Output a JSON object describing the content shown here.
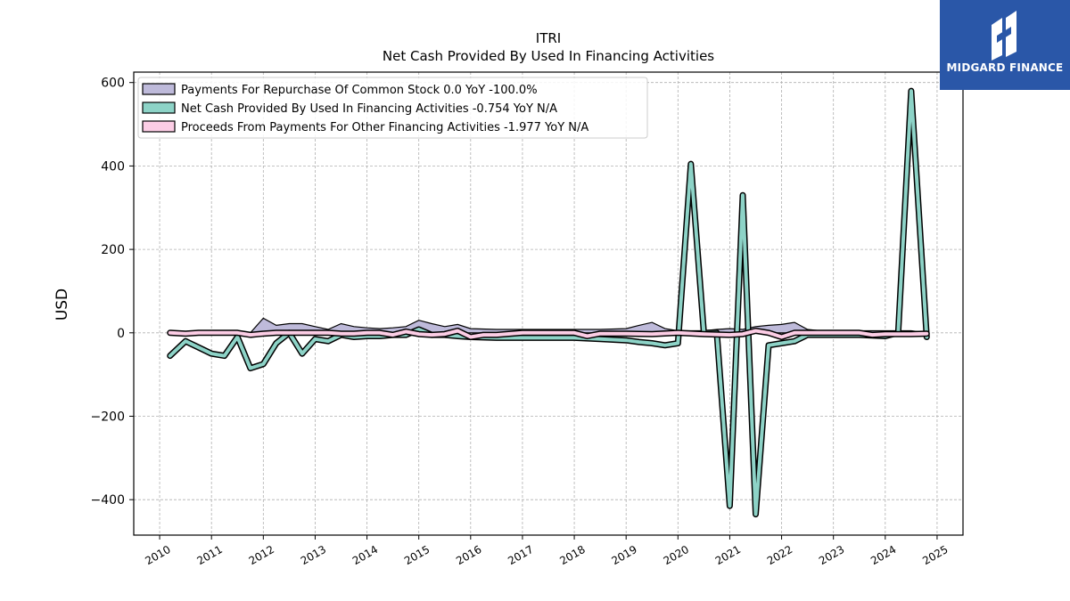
{
  "colors": {
    "repurchase": "#bebada",
    "net_cash": "#8dd3c7",
    "other_financing": "#fccde5",
    "outline": "#000000",
    "grid": "#b0b0b0",
    "logo_bg": "#2a57a8"
  },
  "logo": {
    "text": "MIDGARD FINANCE",
    "icon": "midgard-logo-icon"
  },
  "chart_data": {
    "type": "line",
    "title": "ITRI",
    "subtitle": "Net Cash Provided By Used In Financing Activities",
    "ylabel": "USD",
    "xlabel": "",
    "xlim": [
      2009.5,
      2025.5
    ],
    "ylim": [
      -485,
      625
    ],
    "x_ticks": [
      2010,
      2011,
      2012,
      2013,
      2014,
      2015,
      2016,
      2017,
      2018,
      2019,
      2020,
      2021,
      2022,
      2023,
      2024,
      2025
    ],
    "y_ticks": [
      600,
      400,
      200,
      0,
      -200,
      -400
    ],
    "grid": true,
    "legend_position": "top-left",
    "series": [
      {
        "name": "Payments For Repurchase Of Common Stock  0.0 YoY -100.0%",
        "x": [
          2010.2,
          2010.5,
          2010.75,
          2011.0,
          2011.25,
          2011.5,
          2011.75,
          2012.0,
          2012.25,
          2012.5,
          2012.75,
          2013.0,
          2013.25,
          2013.5,
          2013.75,
          2014.0,
          2014.25,
          2014.5,
          2014.75,
          2015.0,
          2015.25,
          2015.5,
          2015.75,
          2016.0,
          2016.5,
          2017.0,
          2017.5,
          2018.0,
          2018.5,
          2019.0,
          2019.25,
          2019.5,
          2019.75,
          2020.0,
          2020.25,
          2020.5,
          2020.75,
          2021.0,
          2021.25,
          2021.5,
          2021.75,
          2022.0,
          2022.25,
          2022.5,
          2022.75,
          2023.0,
          2023.5,
          2024.0,
          2024.5,
          2024.8
        ],
        "values": [
          0,
          0,
          0,
          0,
          0,
          0,
          0,
          35,
          18,
          22,
          22,
          15,
          8,
          22,
          15,
          12,
          10,
          12,
          15,
          30,
          22,
          15,
          20,
          10,
          8,
          8,
          8,
          8,
          8,
          10,
          18,
          25,
          10,
          5,
          5,
          5,
          8,
          10,
          8,
          15,
          18,
          20,
          25,
          8,
          5,
          5,
          5,
          5,
          5,
          0
        ]
      },
      {
        "name": "Net Cash Provided By Used In Financing Activities  -0.754 YoY N/A",
        "x": [
          2010.2,
          2010.5,
          2010.75,
          2011.0,
          2011.25,
          2011.5,
          2011.75,
          2012.0,
          2012.25,
          2012.5,
          2012.75,
          2013.0,
          2013.25,
          2013.5,
          2013.75,
          2014.0,
          2014.25,
          2014.5,
          2014.75,
          2015.0,
          2015.25,
          2015.5,
          2015.75,
          2016.0,
          2016.5,
          2017.0,
          2017.5,
          2018.0,
          2018.5,
          2019.0,
          2019.25,
          2019.5,
          2019.75,
          2020.0,
          2020.25,
          2020.5,
          2020.75,
          2021.0,
          2021.25,
          2021.5,
          2021.75,
          2022.0,
          2022.25,
          2022.5,
          2022.75,
          2023.0,
          2023.5,
          2024.0,
          2024.25,
          2024.5,
          2024.8
        ],
        "values": [
          -55,
          -20,
          -35,
          -50,
          -55,
          -10,
          -85,
          -75,
          -25,
          0,
          -50,
          -15,
          -20,
          -5,
          -10,
          -8,
          -8,
          -5,
          -5,
          8,
          -5,
          -5,
          -8,
          -10,
          -12,
          -12,
          -12,
          -12,
          -15,
          -18,
          -22,
          -25,
          -30,
          -25,
          405,
          0,
          0,
          -415,
          330,
          -435,
          -30,
          -25,
          -20,
          -5,
          -5,
          -5,
          -5,
          -8,
          0,
          580,
          -10
        ]
      },
      {
        "name": "Proceeds From Payments For Other Financing Activities  -1.977 YoY N/A",
        "x": [
          2010.2,
          2010.5,
          2010.75,
          2011.0,
          2011.25,
          2011.5,
          2011.75,
          2012.0,
          2012.25,
          2012.5,
          2012.75,
          2013.0,
          2013.25,
          2013.5,
          2013.75,
          2014.0,
          2014.25,
          2014.5,
          2014.75,
          2015.0,
          2015.25,
          2015.5,
          2015.75,
          2016.0,
          2016.25,
          2016.5,
          2017.0,
          2017.5,
          2018.0,
          2018.25,
          2018.5,
          2019.0,
          2019.5,
          2020.0,
          2020.5,
          2021.0,
          2021.25,
          2021.5,
          2021.75,
          2022.0,
          2022.25,
          2022.5,
          2023.0,
          2023.5,
          2023.75,
          2024.0,
          2024.5,
          2024.8
        ],
        "values": [
          0,
          -2,
          0,
          0,
          0,
          0,
          -5,
          -2,
          0,
          0,
          0,
          0,
          0,
          -2,
          -2,
          0,
          0,
          -5,
          3,
          -3,
          -5,
          -3,
          5,
          -10,
          -5,
          -5,
          0,
          0,
          0,
          -8,
          -2,
          -2,
          -3,
          0,
          -3,
          -5,
          -3,
          5,
          0,
          -10,
          0,
          0,
          0,
          0,
          -5,
          -3,
          -3,
          -2
        ]
      }
    ]
  }
}
